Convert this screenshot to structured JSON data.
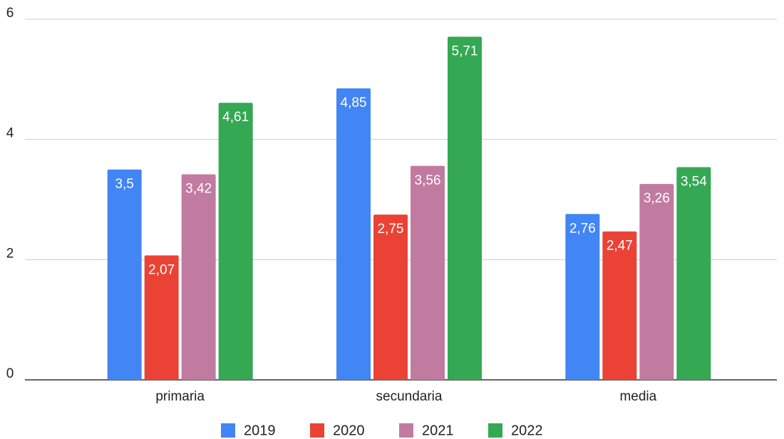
{
  "chart_data": {
    "type": "bar",
    "categories": [
      "primaria",
      "secundaria",
      "media"
    ],
    "series": [
      {
        "name": "2019",
        "color": "#4285f4",
        "values": [
          3.5,
          4.85,
          2.76
        ],
        "value_labels": [
          "3,5",
          "4,85",
          "2,76"
        ]
      },
      {
        "name": "2020",
        "color": "#ea4335",
        "values": [
          2.07,
          2.75,
          2.47
        ],
        "value_labels": [
          "2,07",
          "2,75",
          "2,47"
        ]
      },
      {
        "name": "2021",
        "color": "#c27ba0",
        "values": [
          3.42,
          3.56,
          3.26
        ],
        "value_labels": [
          "3,42",
          "3,56",
          "3,26"
        ]
      },
      {
        "name": "2022",
        "color": "#34a853",
        "values": [
          4.61,
          5.71,
          3.54
        ],
        "value_labels": [
          "4,61",
          "5,71",
          "3,54"
        ]
      }
    ],
    "ylim": [
      0,
      6
    ],
    "yticks": [
      0,
      2,
      4,
      6
    ],
    "grid": true,
    "legend": "bottom"
  }
}
